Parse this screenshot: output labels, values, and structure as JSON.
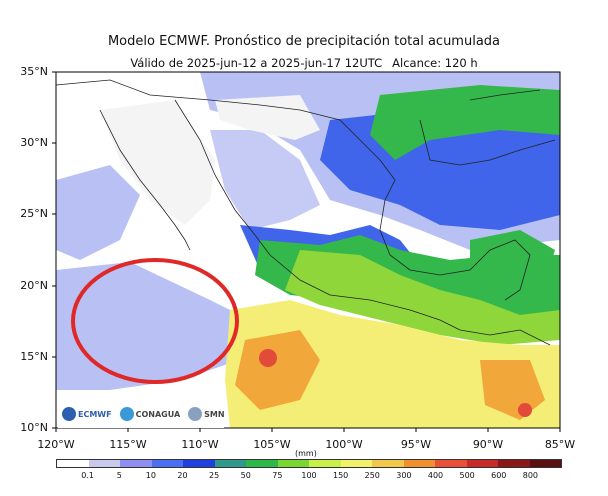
{
  "title": "Modelo ECMWF. Pronóstico de precipitación total acumulada",
  "subtitle": "Válido de 2025-jun-12 a 2025-jun-17 12UTC",
  "reach": "Alcance: 120 h",
  "lat_labels": [
    "35°N",
    "30°N",
    "25°N",
    "20°N",
    "15°N",
    "10°N"
  ],
  "lon_labels": [
    "120°W",
    "115°W",
    "110°W",
    "105°W",
    "100°W",
    "95°W",
    "90°W",
    "85°W"
  ],
  "colorbar": {
    "units": "(mm)",
    "labels": [
      "0.1",
      "5",
      "10",
      "20",
      "25",
      "50",
      "75",
      "100",
      "150",
      "250",
      "300",
      "400",
      "500",
      "600",
      "800"
    ],
    "colors": [
      "#ffffff",
      "#c9c9ee",
      "#8f8ff2",
      "#4a6ff2",
      "#1f3fe0",
      "#2f9a8a",
      "#2fb84a",
      "#7ad632",
      "#c8ef4a",
      "#f2f26a",
      "#f2c84a",
      "#f28f2f",
      "#e8503a",
      "#c82a2a",
      "#8a1818",
      "#5a1010"
    ]
  },
  "logos": [
    "ECMWF",
    "CONAGUA",
    "SMN"
  ],
  "colors": {
    "land_dry": "#f4f4f4",
    "sea_dry": "#ffffff",
    "light_rain": "#b5bdf4",
    "moderate_rain": "#3f63ea",
    "heavy_rain": "#33b84c",
    "very_heavy": "#8ed63a",
    "pacific_band": "#f5f07a",
    "orange_core": "#f2a23a",
    "red_core": "#e24a3a",
    "highlight_circle": "#e02828"
  },
  "highlight_note": "red circle over Gulf of California / Sinaloa coast"
}
